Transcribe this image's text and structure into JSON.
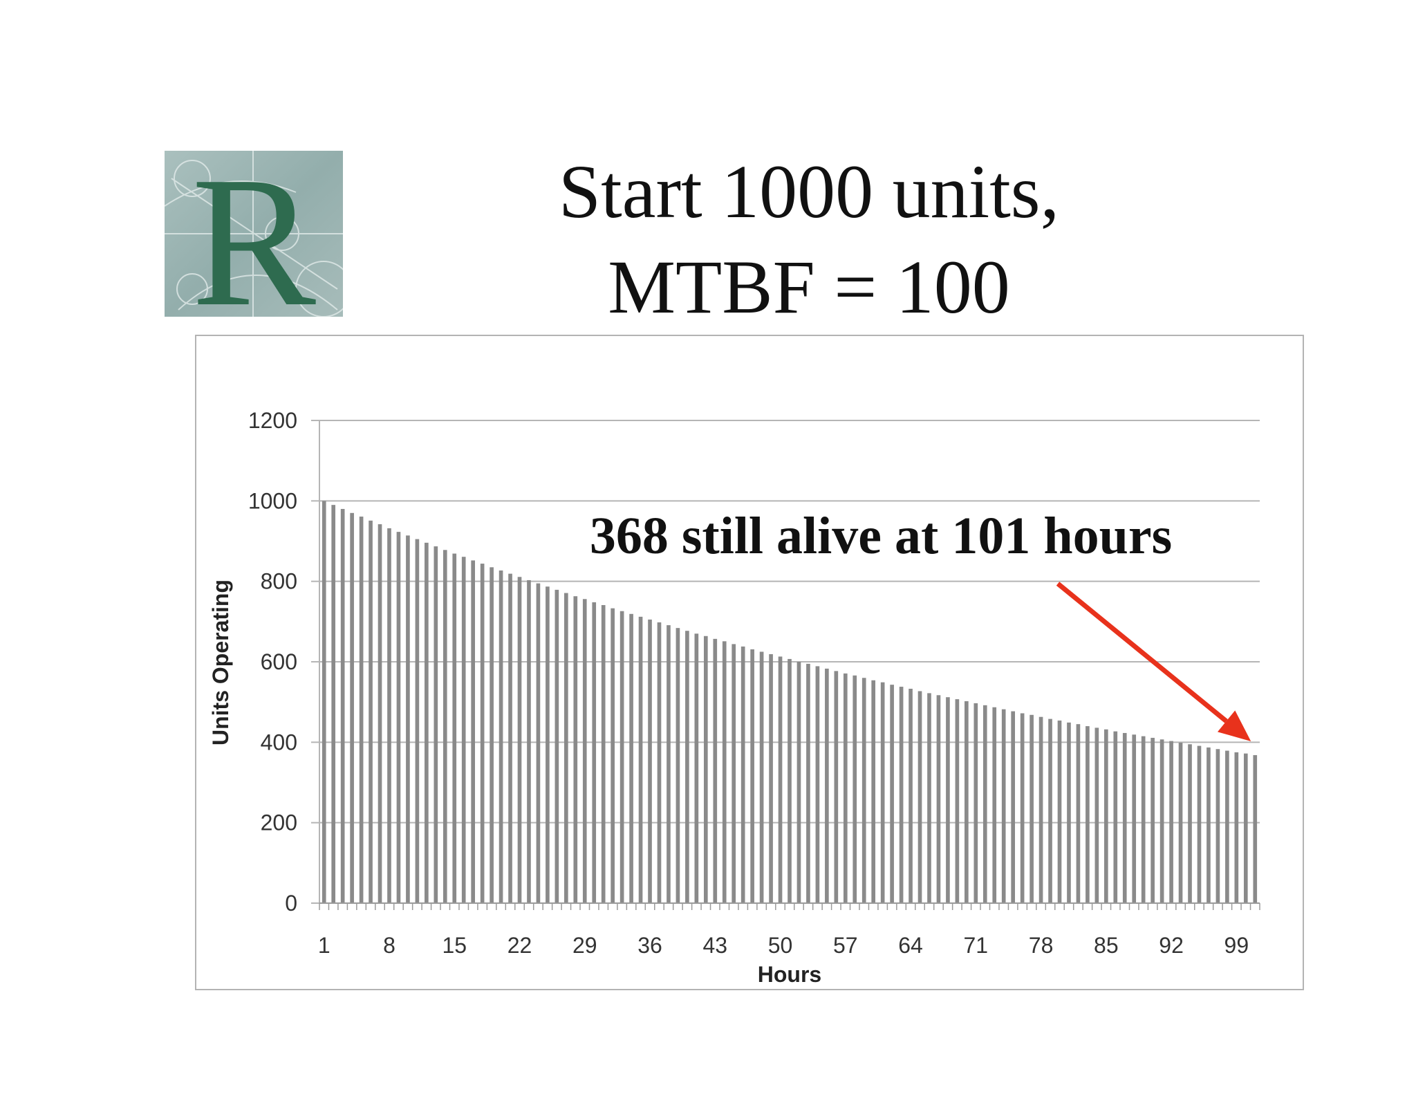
{
  "slide": {
    "title_line1": "Start 1000 units,",
    "title_line2": "MTBF = 100"
  },
  "logo": {
    "icon": "letter-r-logo",
    "text": "R",
    "letter_color": "#2e6b4f",
    "background_color": "#9fb7b5"
  },
  "chart_data": {
    "type": "bar",
    "model": "exponential survival, N(t) = 1000 * exp(-(t-1)/100)",
    "x": [
      1,
      2,
      3,
      4,
      5,
      6,
      7,
      8,
      9,
      10,
      11,
      12,
      13,
      14,
      15,
      16,
      17,
      18,
      19,
      20,
      21,
      22,
      23,
      24,
      25,
      26,
      27,
      28,
      29,
      30,
      31,
      32,
      33,
      34,
      35,
      36,
      37,
      38,
      39,
      40,
      41,
      42,
      43,
      44,
      45,
      46,
      47,
      48,
      49,
      50,
      51,
      52,
      53,
      54,
      55,
      56,
      57,
      58,
      59,
      60,
      61,
      62,
      63,
      64,
      65,
      66,
      67,
      68,
      69,
      70,
      71,
      72,
      73,
      74,
      75,
      76,
      77,
      78,
      79,
      80,
      81,
      82,
      83,
      84,
      85,
      86,
      87,
      88,
      89,
      90,
      91,
      92,
      93,
      94,
      95,
      96,
      97,
      98,
      99,
      100,
      101
    ],
    "values": [
      1000,
      990,
      980,
      970,
      961,
      951,
      942,
      932,
      923,
      914,
      905,
      896,
      887,
      878,
      869,
      861,
      852,
      844,
      835,
      827,
      819,
      811,
      803,
      795,
      787,
      779,
      771,
      763,
      756,
      748,
      741,
      733,
      726,
      719,
      712,
      705,
      698,
      691,
      684,
      677,
      670,
      664,
      657,
      651,
      644,
      638,
      631,
      625,
      619,
      613,
      607,
      600,
      595,
      589,
      583,
      577,
      571,
      566,
      560,
      554,
      549,
      543,
      538,
      533,
      527,
      522,
      517,
      512,
      507,
      502,
      497,
      492,
      487,
      482,
      477,
      472,
      468,
      463,
      458,
      454,
      449,
      445,
      440,
      436,
      432,
      427,
      423,
      419,
      415,
      411,
      407,
      403,
      399,
      395,
      391,
      387,
      383,
      379,
      375,
      372,
      368
    ],
    "xticks": [
      "1",
      "8",
      "15",
      "22",
      "29",
      "36",
      "43",
      "50",
      "57",
      "64",
      "71",
      "78",
      "85",
      "92",
      "99"
    ],
    "yticks": [
      "0",
      "200",
      "400",
      "600",
      "800",
      "1000",
      "1200"
    ],
    "ylim": [
      0,
      1200
    ],
    "xlabel": "Hours",
    "ylabel": "Units Operating",
    "grid": "horizontal",
    "bar_color": "#8a8a8a",
    "grid_color": "#b5b5b5",
    "annotation": {
      "text": "368 still alive at 101 hours",
      "arrow_color": "#e8321c",
      "points_to_x": 101
    }
  }
}
